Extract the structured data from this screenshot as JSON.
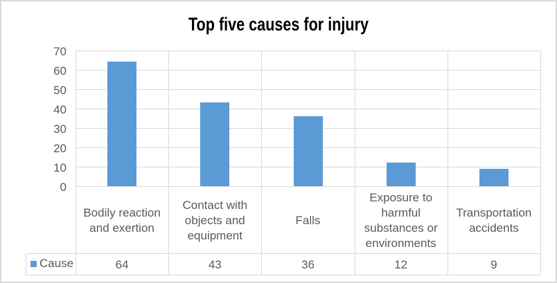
{
  "title": "Top five causes for injury",
  "chart_data": {
    "type": "bar",
    "title": "Top five causes for injury",
    "categories": [
      "Bodily reaction and exertion",
      "Contact with objects and equipment",
      "Falls",
      "Exposure to harmful substances or environments",
      "Transportation accidents"
    ],
    "series": [
      {
        "name": "Cause",
        "values": [
          64,
          43,
          36,
          12,
          9
        ]
      }
    ],
    "xlabel": "",
    "ylabel": "",
    "ylim": [
      0,
      70
    ],
    "yticks": [
      0,
      10,
      20,
      30,
      40,
      50,
      60,
      70
    ],
    "grid": true,
    "legend_position": "data-table-below",
    "data_table": {
      "row_header": "Cause",
      "cell_values": [
        "64",
        "43",
        "36",
        "12",
        "9"
      ]
    },
    "colors": {
      "bar": "#5B9BD5",
      "gridline": "#D9D9D9",
      "axis_text": "#595959",
      "title_text": "#000000",
      "chart_border": "#D9D9D9",
      "background": "#FFFFFF"
    }
  }
}
